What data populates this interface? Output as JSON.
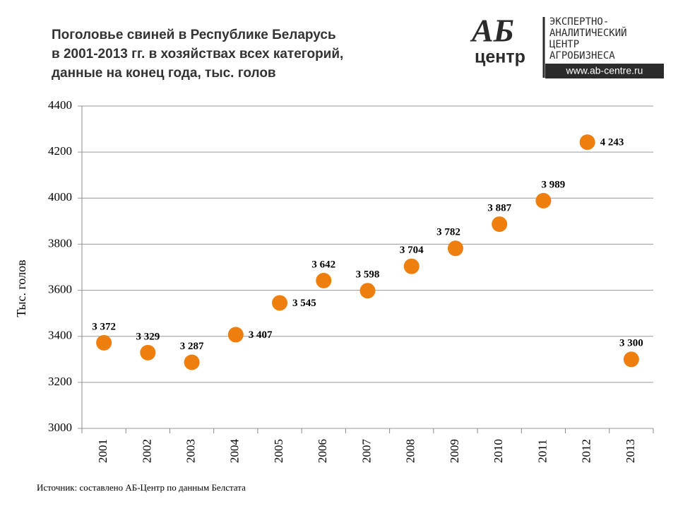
{
  "chart_data": {
    "type": "scatter",
    "title": [
      "Поголовье свиней в Республике Беларусь",
      "в 2001-2013 гг. в хозяйствах всех категорий,",
      "данные на конец года, тыс. голов"
    ],
    "y_label": "Тыс. голов",
    "categories": [
      "2001",
      "2002",
      "2003",
      "2004",
      "2005",
      "2006",
      "2007",
      "2008",
      "2009",
      "2010",
      "2011",
      "2012",
      "2013"
    ],
    "values": [
      3372,
      3329,
      3287,
      3407,
      3545,
      3642,
      3598,
      3704,
      3782,
      3887,
      3989,
      4243,
      3300
    ],
    "value_labels": [
      "3 372",
      "3 329",
      "3 287",
      "3 407",
      "3 545",
      "3 642",
      "3 598",
      "3 704",
      "3 782",
      "3 887",
      "3 989",
      "4 243",
      "3 300"
    ],
    "color": "#ee7f0e",
    "ylim": [
      3000,
      4400
    ],
    "yticks": [
      3000,
      3200,
      3400,
      3600,
      3800,
      4000,
      4200,
      4400
    ],
    "grid": true
  },
  "logo": {
    "mark": "АБ",
    "mark_sub": "центр",
    "lines": [
      "ЭКСПЕРТНО-",
      "АНАЛИТИЧЕСКИЙ",
      "ЦЕНТР",
      "АГРОБИЗНЕСА"
    ],
    "url": "www.ab-centre.ru"
  },
  "source": "Источник: составлено АБ-Центр по данным Белстата"
}
